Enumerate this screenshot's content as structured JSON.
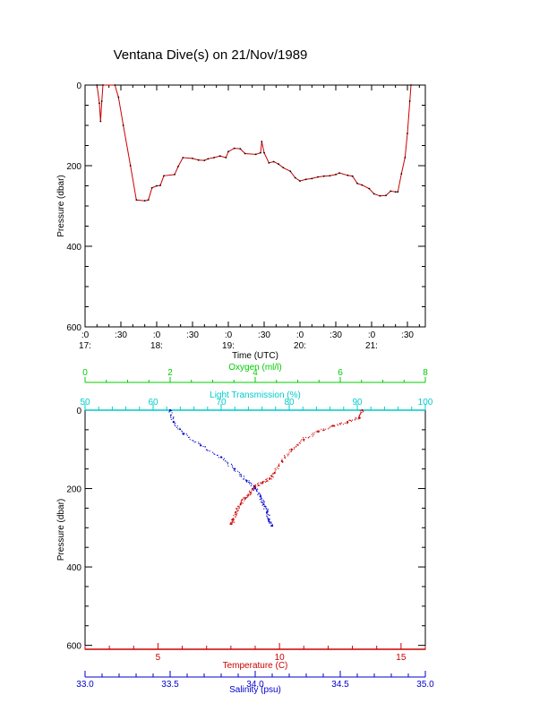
{
  "title": "Ventana Dive(s) on 21/Nov/1989",
  "chart_data": [
    {
      "type": "line",
      "xlabel": "Time (UTC)",
      "ylabel": "Pressure (dbar)",
      "xlim": [
        "17:00",
        "21:45"
      ],
      "ylim": [
        600,
        0
      ],
      "y_inverted": true,
      "y_ticks": [
        "0",
        "200",
        "400",
        "600"
      ],
      "x_ticks": [
        {
          "top": ":0",
          "bottom": "17:"
        },
        {
          "top": ":30",
          "bottom": ""
        },
        {
          "top": ":0",
          "bottom": "18:"
        },
        {
          "top": ":30",
          "bottom": ""
        },
        {
          "top": ":0",
          "bottom": "19:"
        },
        {
          "top": ":30",
          "bottom": ""
        },
        {
          "top": ":0",
          "bottom": "20:"
        },
        {
          "top": ":30",
          "bottom": ""
        },
        {
          "top": ":0",
          "bottom": "21:"
        },
        {
          "top": ":30",
          "bottom": ""
        }
      ],
      "series": [
        {
          "color": "#cc0000",
          "points": [
            [
              "17:10",
              0
            ],
            [
              "17:12",
              45
            ],
            [
              "17:13",
              90
            ],
            [
              "17:14",
              40
            ],
            [
              "17:15",
              0
            ],
            [
              "17:25",
              0
            ],
            [
              "17:28",
              30
            ],
            [
              "17:32",
              100
            ],
            [
              "17:38",
              200
            ],
            [
              "17:43",
              285
            ],
            [
              "17:50",
              287
            ],
            [
              "17:53",
              285
            ],
            [
              "17:56",
              255
            ],
            [
              "18:00",
              250
            ],
            [
              "18:03",
              249
            ],
            [
              "18:06",
              225
            ],
            [
              "18:15",
              222
            ],
            [
              "18:18",
              202
            ],
            [
              "18:22",
              180
            ],
            [
              "18:30",
              182
            ],
            [
              "18:35",
              186
            ],
            [
              "18:40",
              187
            ],
            [
              "18:43",
              183
            ],
            [
              "18:48",
              180
            ],
            [
              "18:53",
              176
            ],
            [
              "18:58",
              180
            ],
            [
              "19:00",
              165
            ],
            [
              "19:05",
              157
            ],
            [
              "19:10",
              158
            ],
            [
              "19:14",
              170
            ],
            [
              "19:23",
              172
            ],
            [
              "19:27",
              168
            ],
            [
              "19:28",
              140
            ],
            [
              "19:30",
              168
            ],
            [
              "19:34",
              193
            ],
            [
              "19:38",
              190
            ],
            [
              "19:42",
              196
            ],
            [
              "19:46",
              205
            ],
            [
              "19:52",
              214
            ],
            [
              "19:56",
              230
            ],
            [
              "20:00",
              238
            ],
            [
              "20:05",
              234
            ],
            [
              "20:10",
              232
            ],
            [
              "20:15",
              228
            ],
            [
              "20:20",
              226
            ],
            [
              "20:25",
              225
            ],
            [
              "20:30",
              222
            ],
            [
              "20:33",
              218
            ],
            [
              "20:40",
              224
            ],
            [
              "20:44",
              226
            ],
            [
              "20:48",
              244
            ],
            [
              "20:52",
              248
            ],
            [
              "20:58",
              257
            ],
            [
              "21:02",
              270
            ],
            [
              "21:07",
              275
            ],
            [
              "21:12",
              274
            ],
            [
              "21:16",
              263
            ],
            [
              "21:20",
              265
            ],
            [
              "21:22",
              265
            ],
            [
              "21:25",
              220
            ],
            [
              "21:28",
              180
            ],
            [
              "21:30",
              120
            ],
            [
              "21:32",
              40
            ],
            [
              "21:33",
              0
            ]
          ]
        }
      ]
    },
    {
      "type": "scatter",
      "ylabel": "Pressure (dbar)",
      "ylim": [
        610,
        0
      ],
      "y_inverted": true,
      "y_ticks": [
        "0",
        "200",
        "400",
        "600"
      ],
      "axes": {
        "oxygen": {
          "label": "Oxygen (ml/l)",
          "color": "#00cc00",
          "min": 0,
          "max": 8,
          "ticks": [
            "0",
            "2",
            "4",
            "6",
            "8"
          ],
          "position": "top"
        },
        "light": {
          "label": "Light Transmission (%)",
          "color": "#00cccc",
          "min": 50,
          "max": 100,
          "ticks": [
            "50",
            "60",
            "70",
            "80",
            "90",
            "100"
          ],
          "position": "top"
        },
        "temperature": {
          "label": "Temperature (C)",
          "color": "#cc0000",
          "min": 2,
          "max": 16,
          "ticks": [
            "5",
            "10",
            "15"
          ],
          "position": "bottom"
        },
        "salinity": {
          "label": "Salinity (psu)",
          "color": "#0000cc",
          "min": 33.0,
          "max": 35.0,
          "ticks": [
            "33.0",
            "33.5",
            "34.0",
            "34.5",
            "35.0"
          ],
          "position": "bottom"
        }
      },
      "series": [
        {
          "axis": "temperature",
          "color": "#cc0000",
          "points": [
            [
              13.4,
              0
            ],
            [
              13.3,
              20
            ],
            [
              12.8,
              30
            ],
            [
              12.2,
              40
            ],
            [
              11.6,
              55
            ],
            [
              11.0,
              75
            ],
            [
              10.5,
              100
            ],
            [
              10.1,
              130
            ],
            [
              9.8,
              160
            ],
            [
              9.6,
              175
            ],
            [
              9.3,
              185
            ],
            [
              9.0,
              195
            ],
            [
              8.8,
              210
            ],
            [
              8.6,
              225
            ],
            [
              8.4,
              240
            ],
            [
              8.2,
              260
            ],
            [
              8.1,
              280
            ],
            [
              8.0,
              290
            ]
          ]
        },
        {
          "axis": "salinity",
          "color": "#0000cc",
          "points": [
            [
              33.5,
              0
            ],
            [
              33.52,
              30
            ],
            [
              33.58,
              60
            ],
            [
              33.68,
              90
            ],
            [
              33.8,
              120
            ],
            [
              33.88,
              150
            ],
            [
              33.95,
              180
            ],
            [
              34.0,
              200
            ],
            [
              34.03,
              220
            ],
            [
              34.05,
              240
            ],
            [
              34.07,
              260
            ],
            [
              34.08,
              280
            ],
            [
              34.1,
              295
            ]
          ]
        }
      ]
    }
  ]
}
